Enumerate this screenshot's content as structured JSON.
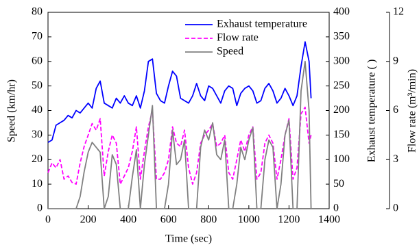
{
  "chart_data": {
    "type": "line",
    "xlabel": "Time (sec)",
    "ylabel": "Speed (km/hr)",
    "y2label": "Exhaust temperature (  )",
    "y3label": "Flow rate (m³/min)",
    "xlim": [
      0,
      1400
    ],
    "xticks": [
      0,
      200,
      400,
      600,
      800,
      1000,
      1200,
      1400
    ],
    "ylim": [
      0,
      80
    ],
    "yticks": [
      0,
      10,
      20,
      30,
      40,
      50,
      60,
      70,
      80
    ],
    "y2lim": [
      0,
      400
    ],
    "y2ticks": [
      0,
      50,
      100,
      150,
      200,
      250,
      300,
      350,
      400
    ],
    "y3lim": [
      0,
      12
    ],
    "y3ticks": [
      0,
      3,
      6,
      9,
      12
    ],
    "legend": "upper right",
    "x": [
      0,
      20,
      40,
      60,
      80,
      100,
      120,
      140,
      160,
      180,
      200,
      220,
      240,
      260,
      280,
      300,
      320,
      340,
      360,
      380,
      400,
      420,
      440,
      460,
      480,
      500,
      520,
      540,
      560,
      580,
      600,
      620,
      640,
      660,
      680,
      700,
      720,
      740,
      760,
      780,
      800,
      820,
      840,
      860,
      880,
      900,
      920,
      940,
      960,
      980,
      1000,
      1020,
      1040,
      1060,
      1080,
      1100,
      1120,
      1140,
      1160,
      1180,
      1200,
      1220,
      1240,
      1260,
      1280,
      1300,
      1310
    ],
    "series": [
      {
        "name": "Exhaust temperature",
        "color": "#0000ff",
        "linestyle": "solid",
        "axis": "y2",
        "values": [
          135,
          140,
          170,
          175,
          180,
          190,
          185,
          200,
          195,
          205,
          215,
          205,
          245,
          260,
          215,
          210,
          205,
          225,
          215,
          230,
          215,
          210,
          230,
          205,
          240,
          300,
          305,
          235,
          220,
          215,
          250,
          280,
          270,
          225,
          220,
          215,
          230,
          255,
          230,
          220,
          250,
          245,
          230,
          215,
          240,
          250,
          245,
          210,
          235,
          245,
          250,
          240,
          215,
          220,
          245,
          255,
          240,
          215,
          225,
          245,
          230,
          210,
          230,
          290,
          340,
          300,
          225
        ]
      },
      {
        "name": "Flow rate",
        "color": "#ff00ff",
        "linestyle": "dashed",
        "axis": "y3",
        "values": [
          2.2,
          2.8,
          2.5,
          3.0,
          1.8,
          2.0,
          1.6,
          1.5,
          2.8,
          3.8,
          4.5,
          5.2,
          4.8,
          5.5,
          2.0,
          3.5,
          4.5,
          4.0,
          1.5,
          2.0,
          2.5,
          3.5,
          5.0,
          1.8,
          3.5,
          5.0,
          6.0,
          1.8,
          1.8,
          2.2,
          3.0,
          5.0,
          4.0,
          3.8,
          4.8,
          2.5,
          1.5,
          2.2,
          4.0,
          4.5,
          4.8,
          5.2,
          3.8,
          4.0,
          4.5,
          2.2,
          1.8,
          3.0,
          4.2,
          3.5,
          4.5,
          5.0,
          1.8,
          2.2,
          4.0,
          4.5,
          4.0,
          1.8,
          3.0,
          4.5,
          5.5,
          1.8,
          2.5,
          5.8,
          6.2,
          4.0,
          4.5
        ]
      },
      {
        "name": "Speed",
        "color": "#808080",
        "linestyle": "solid",
        "axis": "y",
        "values": [
          0,
          0,
          0,
          0,
          0,
          0,
          0,
          0,
          5,
          15,
          23,
          27,
          25,
          23,
          0,
          5,
          22,
          18,
          0,
          0,
          0,
          13,
          24,
          0,
          18,
          30,
          42,
          0,
          0,
          0,
          10,
          32,
          18,
          20,
          28,
          0,
          0,
          0,
          25,
          32,
          28,
          35,
          22,
          20,
          28,
          0,
          0,
          10,
          25,
          20,
          28,
          33,
          0,
          0,
          20,
          28,
          25,
          0,
          10,
          30,
          36,
          0,
          0,
          48,
          60,
          40,
          0
        ]
      }
    ]
  }
}
